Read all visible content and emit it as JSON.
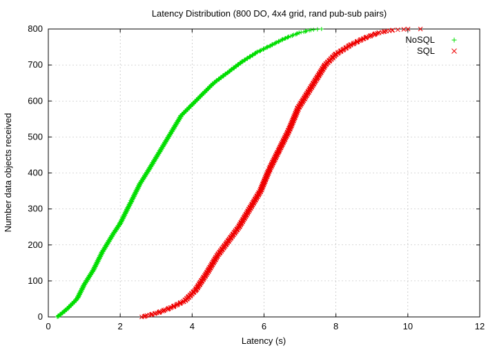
{
  "chart_data": {
    "type": "scatter",
    "title": "Latency Distribution (800 DO, 4x4 grid, rand pub-sub pairs)",
    "xlabel": "Latency (s)",
    "ylabel": "Number data objects received",
    "xlim": [
      0,
      12
    ],
    "ylim": [
      0,
      800
    ],
    "xticks": [
      "0",
      "2",
      "4",
      "6",
      "8",
      "10",
      "12"
    ],
    "yticks": [
      "0",
      "100",
      "200",
      "300",
      "400",
      "500",
      "600",
      "700",
      "800"
    ],
    "grid": true,
    "legend": "top-right",
    "series": [
      {
        "name": "NoSQL",
        "marker": "+",
        "color": "#00dd00",
        "points": [
          [
            0.25,
            0
          ],
          [
            0.5,
            20
          ],
          [
            0.8,
            50
          ],
          [
            1.0,
            90
          ],
          [
            1.25,
            130
          ],
          [
            1.5,
            180
          ],
          [
            1.8,
            230
          ],
          [
            2.0,
            260
          ],
          [
            2.3,
            320
          ],
          [
            2.55,
            370
          ],
          [
            2.8,
            410
          ],
          [
            3.1,
            460
          ],
          [
            3.4,
            510
          ],
          [
            3.7,
            560
          ],
          [
            4.0,
            590
          ],
          [
            4.3,
            620
          ],
          [
            4.6,
            650
          ],
          [
            5.0,
            680
          ],
          [
            5.4,
            710
          ],
          [
            5.8,
            735
          ],
          [
            6.2,
            755
          ],
          [
            6.6,
            775
          ],
          [
            7.0,
            790
          ],
          [
            7.3,
            797
          ],
          [
            7.6,
            800
          ]
        ]
      },
      {
        "name": "SQL",
        "marker": "x",
        "color": "#ee0000",
        "points": [
          [
            2.6,
            0
          ],
          [
            3.0,
            10
          ],
          [
            3.4,
            25
          ],
          [
            3.8,
            45
          ],
          [
            4.1,
            75
          ],
          [
            4.4,
            120
          ],
          [
            4.7,
            170
          ],
          [
            5.0,
            210
          ],
          [
            5.3,
            250
          ],
          [
            5.6,
            300
          ],
          [
            5.9,
            350
          ],
          [
            6.15,
            410
          ],
          [
            6.4,
            460
          ],
          [
            6.7,
            520
          ],
          [
            6.95,
            580
          ],
          [
            7.2,
            620
          ],
          [
            7.45,
            660
          ],
          [
            7.7,
            700
          ],
          [
            8.0,
            730
          ],
          [
            8.4,
            755
          ],
          [
            8.8,
            775
          ],
          [
            9.2,
            790
          ],
          [
            9.6,
            797
          ],
          [
            10.0,
            800
          ],
          [
            10.35,
            800
          ]
        ]
      }
    ]
  }
}
